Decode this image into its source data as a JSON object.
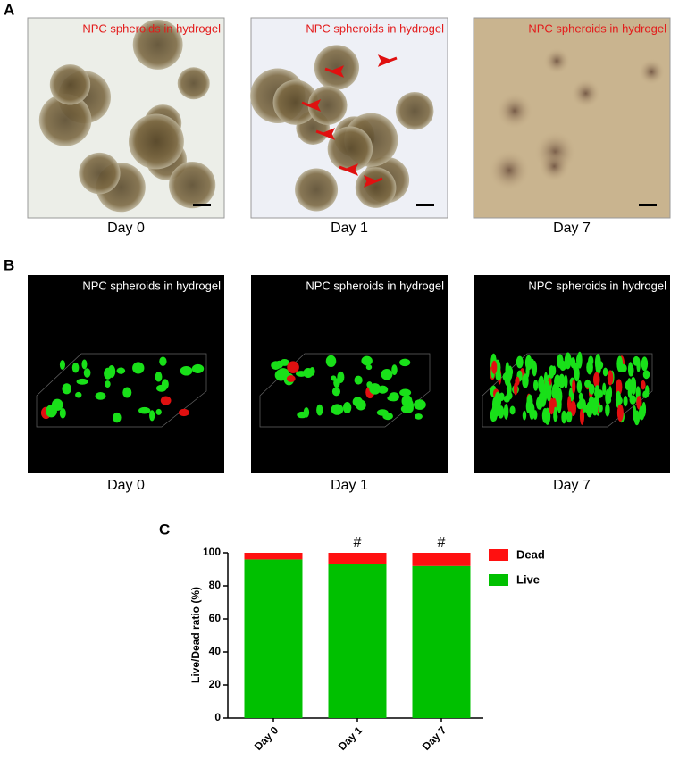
{
  "panel_a": {
    "label": "A",
    "images": [
      {
        "overlay": "NPC spheroids in hydrogel",
        "caption": "Day 0"
      },
      {
        "overlay": "NPC spheroids in hydrogel",
        "caption": "Day 1"
      },
      {
        "overlay": "NPC spheroids in hydrogel",
        "caption": "Day 7"
      }
    ]
  },
  "panel_b": {
    "label": "B",
    "images": [
      {
        "overlay": "NPC spheroids in hydrogel",
        "caption": "Day 0"
      },
      {
        "overlay": "NPC spheroids in hydrogel",
        "caption": "Day 1"
      },
      {
        "overlay": "NPC spheroids in hydrogel",
        "caption": "Day 7"
      }
    ]
  },
  "chart_data": {
    "type": "stacked_bar",
    "label": "C",
    "ylabel": "Live/Dead ratio (%)",
    "categories": [
      "Day 0",
      "Day 1",
      "Day 7"
    ],
    "series": [
      {
        "name": "Live",
        "color": "#00c000",
        "values": [
          96,
          93,
          92
        ]
      },
      {
        "name": "Dead",
        "color": "#ff1010",
        "values": [
          4,
          7,
          8
        ]
      }
    ],
    "ylim": [
      0,
      100
    ],
    "yticks": [
      0,
      20,
      40,
      60,
      80,
      100
    ],
    "annotations": [
      {
        "category": "Day 1",
        "text": "#"
      },
      {
        "category": "Day 7",
        "text": "#"
      }
    ]
  }
}
